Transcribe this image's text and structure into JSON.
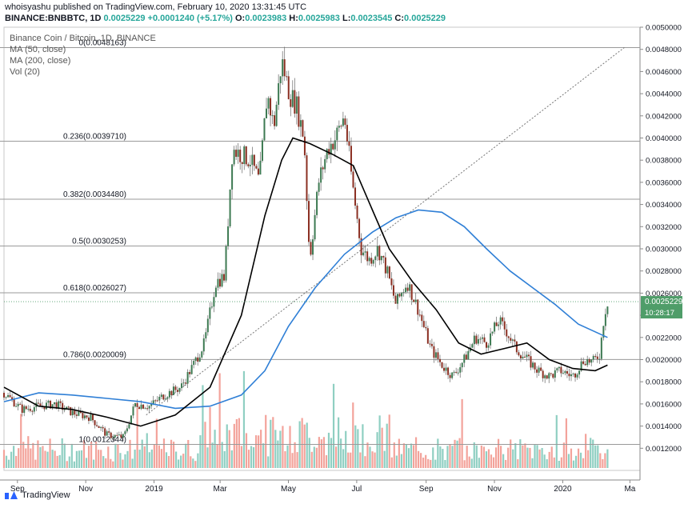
{
  "header": {
    "line1": "whoisyashu published on TradingView.com, February 10, 2020 13:31:45 UTC",
    "symbol": "BINANCE:BNBBTC, 1D",
    "last": "0.0025229",
    "change": "+0.0001240 (+5.17%)",
    "open_label": "O:",
    "open": "0.0023983",
    "high_label": "H:",
    "high": "0.0025983",
    "low_label": "L:",
    "low": "0.0023545",
    "close_label": "C:",
    "close": "0.0025229"
  },
  "legend": {
    "title": "Binance Coin / Bitcoin, 1D, BINANCE",
    "ma50": "MA (50, close)",
    "ma200": "MA (200, close)",
    "vol": "Vol (20)"
  },
  "footer": {
    "brand": "TradingView"
  },
  "colors": {
    "up": "#26a69a",
    "down": "#ef5350",
    "candle_up": "#3d7a52",
    "candle_down": "#8b2f22",
    "ma50": "#000000",
    "ma200": "#2f7fd6",
    "vol_up": "#8fcfc2",
    "vol_down": "#f3a39b",
    "price_tag": "#4f9d69",
    "fib_line": "#9a9a9a"
  },
  "chart_data": {
    "type": "candlestick",
    "title": "Binance Coin / Bitcoin, 1D, BINANCE",
    "x_labels": [
      "Sep",
      "Nov",
      "2019",
      "Mar",
      "May",
      "Jul",
      "Sep",
      "Nov",
      "2020",
      "Ma"
    ],
    "x_label_dates": [
      "2018-09-01",
      "2018-11-01",
      "2019-01-01",
      "2019-03-01",
      "2019-05-01",
      "2019-07-01",
      "2019-09-01",
      "2019-11-01",
      "2020-01-01",
      "2020-03-01"
    ],
    "ylim": [
      0.001,
      0.005
    ],
    "y_ticks": [
      "0.0012000",
      "0.0014000",
      "0.0016000",
      "0.0018000",
      "0.0020000",
      "0.0022000",
      "0.0024000",
      "0.0026000",
      "0.0028000",
      "0.0030000",
      "0.0032000",
      "0.0034000",
      "0.0036000",
      "0.0038000",
      "0.0040000",
      "0.0042000",
      "0.0044000",
      "0.0046000",
      "0.0048000",
      "0.0050000"
    ],
    "last_price": "0.0025229",
    "countdown": "10:28:17",
    "fib_levels": [
      {
        "label": "0(0.0048163)",
        "value": 0.0048163
      },
      {
        "label": "0.236(0.0039710)",
        "value": 0.003971
      },
      {
        "label": "0.382(0.0034480)",
        "value": 0.003448
      },
      {
        "label": "0.5(0.0030253)",
        "value": 0.0030253
      },
      {
        "label": "0.618(0.0026027)",
        "value": 0.0026027
      },
      {
        "label": "0.786(0.0020009)",
        "value": 0.0020009
      },
      {
        "label": "1(0.0012344)",
        "value": 0.0012344
      }
    ],
    "trend_line": [
      {
        "date": "2018-12-25",
        "value": 0.0015
      },
      {
        "date": "2020-02-25",
        "value": 0.0048163
      }
    ],
    "price_close": [
      [
        "2018-08-20",
        0.0017
      ],
      [
        "2018-09-05",
        0.00155
      ],
      [
        "2018-09-20",
        0.00158
      ],
      [
        "2018-10-05",
        0.0016
      ],
      [
        "2018-10-20",
        0.00152
      ],
      [
        "2018-11-05",
        0.00148
      ],
      [
        "2018-11-20",
        0.00132
      ],
      [
        "2018-12-05",
        0.0013
      ],
      [
        "2018-12-15",
        0.0016
      ],
      [
        "2018-12-28",
        0.00158
      ],
      [
        "2019-01-10",
        0.00168
      ],
      [
        "2019-01-25",
        0.00175
      ],
      [
        "2019-02-05",
        0.00195
      ],
      [
        "2019-02-15",
        0.00215
      ],
      [
        "2019-02-25",
        0.0027
      ],
      [
        "2019-03-05",
        0.00275
      ],
      [
        "2019-03-12",
        0.0039
      ],
      [
        "2019-03-20",
        0.00385
      ],
      [
        "2019-03-28",
        0.0038
      ],
      [
        "2019-04-05",
        0.0036
      ],
      [
        "2019-04-12",
        0.0044
      ],
      [
        "2019-04-18",
        0.0041
      ],
      [
        "2019-04-25",
        0.0047
      ],
      [
        "2019-05-02",
        0.0044
      ],
      [
        "2019-05-08",
        0.0043
      ],
      [
        "2019-05-15",
        0.004
      ],
      [
        "2019-05-20",
        0.0029
      ],
      [
        "2019-05-28",
        0.0036
      ],
      [
        "2019-06-05",
        0.0039
      ],
      [
        "2019-06-12",
        0.004
      ],
      [
        "2019-06-20",
        0.0042
      ],
      [
        "2019-06-27",
        0.0036
      ],
      [
        "2019-07-05",
        0.003
      ],
      [
        "2019-07-12",
        0.0029
      ],
      [
        "2019-07-20",
        0.003
      ],
      [
        "2019-07-28",
        0.0028
      ],
      [
        "2019-08-05",
        0.0025
      ],
      [
        "2019-08-15",
        0.0027
      ],
      [
        "2019-08-25",
        0.00245
      ],
      [
        "2019-09-05",
        0.0021
      ],
      [
        "2019-09-15",
        0.00195
      ],
      [
        "2019-09-25",
        0.00185
      ],
      [
        "2019-10-05",
        0.002
      ],
      [
        "2019-10-15",
        0.0022
      ],
      [
        "2019-10-25",
        0.00215
      ],
      [
        "2019-11-05",
        0.00235
      ],
      [
        "2019-11-12",
        0.00225
      ],
      [
        "2019-11-20",
        0.0021
      ],
      [
        "2019-11-30",
        0.002
      ],
      [
        "2019-12-10",
        0.0019
      ],
      [
        "2019-12-20",
        0.00185
      ],
      [
        "2019-12-30",
        0.0019
      ],
      [
        "2020-01-10",
        0.00185
      ],
      [
        "2020-01-20",
        0.002
      ],
      [
        "2020-01-28",
        0.00198
      ],
      [
        "2020-02-03",
        0.00205
      ],
      [
        "2020-02-07",
        0.0024
      ],
      [
        "2020-02-10",
        0.0025229
      ]
    ],
    "ma50": [
      [
        "2018-08-20",
        0.00175
      ],
      [
        "2018-09-20",
        0.00158
      ],
      [
        "2018-10-20",
        0.00155
      ],
      [
        "2018-11-20",
        0.00148
      ],
      [
        "2018-12-20",
        0.0014
      ],
      [
        "2019-01-20",
        0.0015
      ],
      [
        "2019-02-20",
        0.00175
      ],
      [
        "2019-03-20",
        0.0024
      ],
      [
        "2019-04-10",
        0.0033
      ],
      [
        "2019-04-25",
        0.0038
      ],
      [
        "2019-05-05",
        0.004
      ],
      [
        "2019-05-20",
        0.00395
      ],
      [
        "2019-06-10",
        0.00385
      ],
      [
        "2019-06-28",
        0.00375
      ],
      [
        "2019-07-15",
        0.00335
      ],
      [
        "2019-07-30",
        0.003
      ],
      [
        "2019-08-20",
        0.0027
      ],
      [
        "2019-09-10",
        0.00245
      ],
      [
        "2019-09-30",
        0.00215
      ],
      [
        "2019-10-20",
        0.00205
      ],
      [
        "2019-11-10",
        0.0021
      ],
      [
        "2019-11-30",
        0.00215
      ],
      [
        "2019-12-20",
        0.002
      ],
      [
        "2020-01-10",
        0.00192
      ],
      [
        "2020-01-30",
        0.0019
      ],
      [
        "2020-02-10",
        0.00195
      ]
    ],
    "ma200": [
      [
        "2018-08-20",
        0.00162
      ],
      [
        "2018-09-20",
        0.0017
      ],
      [
        "2018-10-20",
        0.00168
      ],
      [
        "2018-11-20",
        0.00165
      ],
      [
        "2018-12-20",
        0.00162
      ],
      [
        "2019-01-20",
        0.00156
      ],
      [
        "2019-02-20",
        0.00158
      ],
      [
        "2019-03-20",
        0.00168
      ],
      [
        "2019-04-10",
        0.0019
      ],
      [
        "2019-05-01",
        0.0023
      ],
      [
        "2019-05-25",
        0.00265
      ],
      [
        "2019-06-20",
        0.00295
      ],
      [
        "2019-07-15",
        0.00315
      ],
      [
        "2019-08-05",
        0.00328
      ],
      [
        "2019-08-25",
        0.00335
      ],
      [
        "2019-09-15",
        0.00333
      ],
      [
        "2019-10-05",
        0.0032
      ],
      [
        "2019-10-25",
        0.003
      ],
      [
        "2019-11-15",
        0.0028
      ],
      [
        "2019-12-05",
        0.00265
      ],
      [
        "2019-12-25",
        0.0025
      ],
      [
        "2020-01-15",
        0.00232
      ],
      [
        "2020-02-10",
        0.0022
      ]
    ]
  }
}
